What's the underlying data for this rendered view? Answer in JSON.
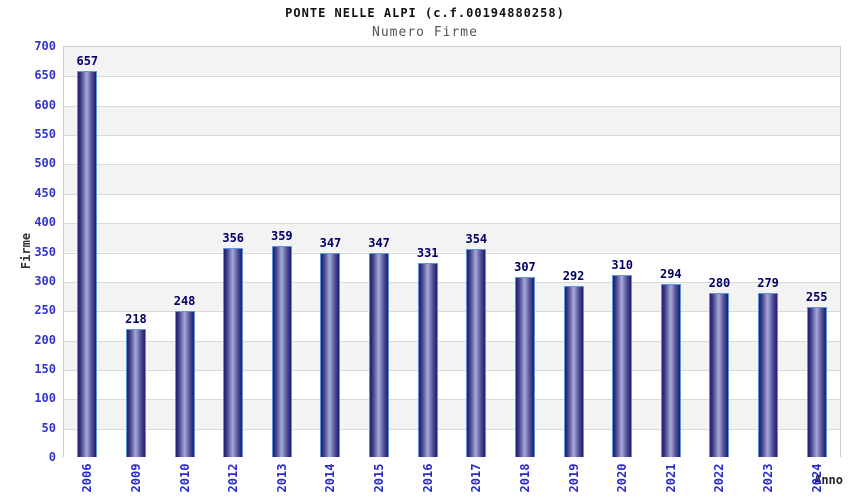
{
  "chart_data": {
    "type": "bar",
    "title": "PONTE NELLE ALPI (c.f.00194880258)",
    "subtitle": "Numero Firme",
    "xlabel": "Anno",
    "ylabel": "Firme",
    "categories": [
      "2006",
      "2009",
      "2010",
      "2012",
      "2013",
      "2014",
      "2015",
      "2016",
      "2017",
      "2018",
      "2019",
      "2020",
      "2021",
      "2022",
      "2023",
      "2024"
    ],
    "values": [
      657,
      218,
      248,
      356,
      359,
      347,
      347,
      331,
      354,
      307,
      292,
      310,
      294,
      280,
      279,
      255
    ],
    "ylim": [
      0,
      700
    ],
    "ytick_step": 50,
    "grid": true,
    "legend": "none",
    "band_fill": true,
    "colors": {
      "tick_label": "#3333cc",
      "category_label": "#2929cc",
      "value_label": "#000066",
      "bar_edge": "#5e96e0",
      "bar_dark": "#1c1c74",
      "bar_light": "#a9a9d9",
      "band": "#f3f3f3",
      "gridline": "#d9d9d9",
      "plot_border": "#cccccc"
    }
  }
}
